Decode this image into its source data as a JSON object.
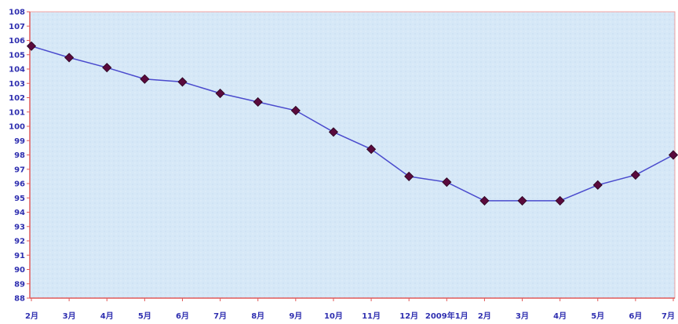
{
  "chart_data": {
    "type": "line",
    "categories": [
      "2月",
      "3月",
      "4月",
      "5月",
      "6月",
      "7月",
      "8月",
      "9月",
      "10月",
      "11月",
      "12月",
      "2009年1月",
      "2月",
      "3月",
      "4月",
      "5月",
      "6月",
      "7月"
    ],
    "series": [
      {
        "values": [
          105.6,
          104.8,
          104.1,
          103.3,
          103.1,
          102.3,
          101.7,
          101.1,
          99.6,
          98.4,
          96.5,
          96.1,
          94.8,
          94.8,
          94.8,
          95.9,
          96.6,
          98.0
        ]
      }
    ],
    "y_ticks": [
      "88",
      "89",
      "90",
      "91",
      "92",
      "93",
      "94",
      "95",
      "96",
      "97",
      "98",
      "99",
      "100",
      "101",
      "102",
      "103",
      "104",
      "105",
      "106",
      "107",
      "108"
    ],
    "ylim": [
      88,
      108
    ],
    "grid": false,
    "colors": {
      "line": "#4a4acd",
      "marker": "#5a0a3c",
      "plot_bg": "#d6e8f7",
      "axis": "#e05a5a",
      "border": "#f0a0a0"
    }
  }
}
